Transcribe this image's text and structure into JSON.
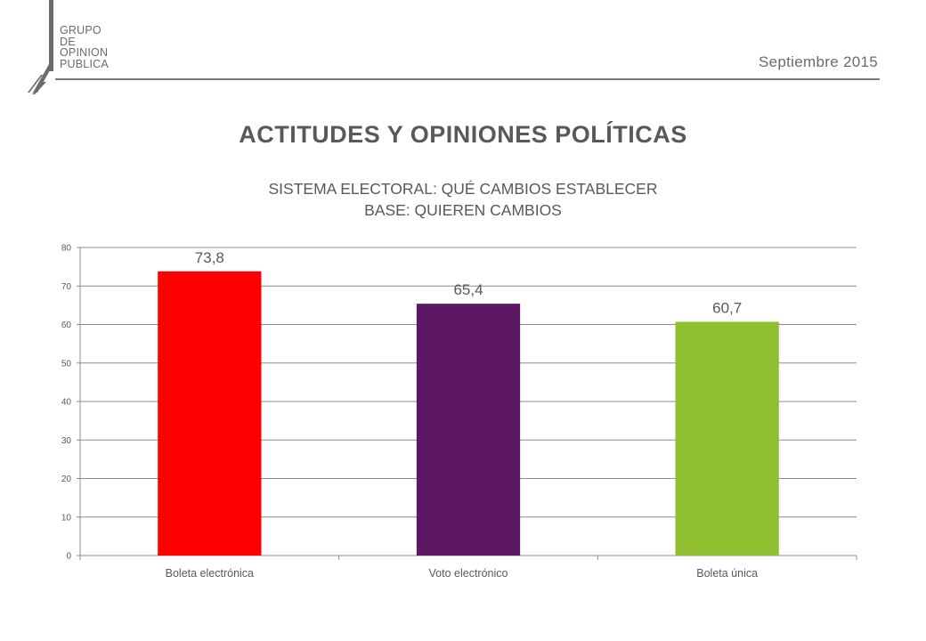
{
  "header": {
    "logo": {
      "line1": "GRUPO",
      "line2": "DE",
      "line3": "OPINION",
      "line4": "PUBLICA"
    },
    "date": "Septiembre 2015"
  },
  "main_title": "ACTITUDES Y OPINIONES POLÍTICAS",
  "subtitle": {
    "line1": "SISTEMA ELECTORAL: QUÉ CAMBIOS ESTABLECER",
    "line2": "BASE: QUIEREN CAMBIOS"
  },
  "colors": {
    "text": "#595959",
    "grid": "#8c8c8c",
    "logo": "#6b6b6b"
  },
  "chart_data": {
    "type": "bar",
    "title": "",
    "xlabel": "",
    "ylabel": "",
    "categories": [
      "Boleta electrónica",
      "Voto electrónico",
      "Boleta única"
    ],
    "values": [
      73.8,
      65.4,
      60.7
    ],
    "value_labels": [
      "73,8",
      "65,4",
      "60,7"
    ],
    "colors": [
      "#ff0000",
      "#5c1863",
      "#8fbf30"
    ],
    "ylim": [
      0,
      80
    ],
    "yticks": [
      "0",
      "10",
      "20",
      "30",
      "40",
      "50",
      "60",
      "70",
      "80"
    ],
    "grid": true,
    "legend": "none"
  }
}
